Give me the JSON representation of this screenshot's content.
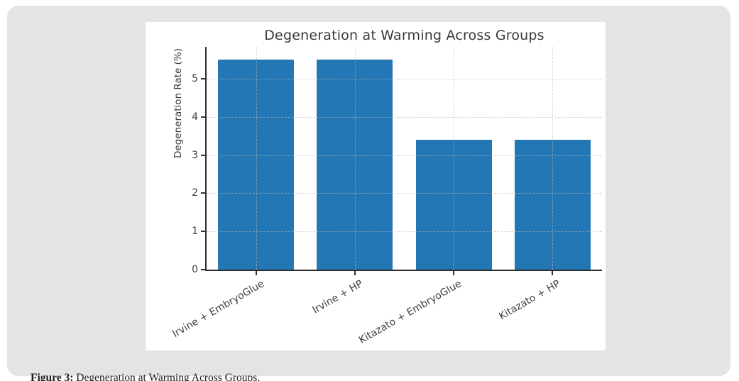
{
  "page": {
    "background": "#ffffff"
  },
  "card": {
    "background": "#e4e4e4",
    "panel_background": "#ffffff"
  },
  "caption": {
    "prefix": "Figure 3:",
    "text": " Degeneration at Warming Across Groups."
  },
  "chart_data": {
    "type": "bar",
    "title": "Degeneration at Warming Across Groups",
    "categories": [
      "Irvine + EmbryoGlue",
      "Irvine + HP",
      "Kitazato + EmbryoGlue",
      "Kitazato + HP"
    ],
    "values": [
      5.5,
      5.5,
      3.4,
      3.4
    ],
    "xlabel": "",
    "ylabel": "Degeneration Rate (%)",
    "ylim": [
      0,
      5.84
    ],
    "yticks": [
      0,
      1,
      2,
      3,
      4,
      5
    ],
    "grid": true,
    "grid_style": "dashed",
    "legend": "none",
    "bar_color": "#2277b4",
    "axis_color": "#2f2f2f",
    "text_color": "#404040",
    "xtick_rotation_deg": 30
  }
}
